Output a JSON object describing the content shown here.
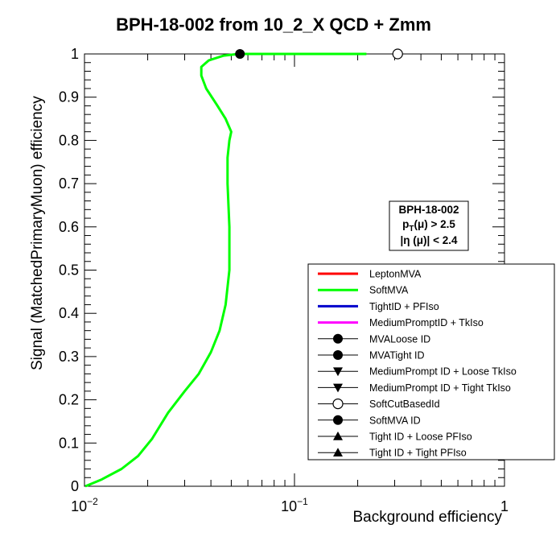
{
  "chart_data": {
    "type": "line",
    "title": "BPH-18-002 from 10_2_X QCD + Zmm",
    "xlabel": "Background efficiency",
    "ylabel": "Signal (MatchedPrimaryMuon) efficiency",
    "x_scale": "log",
    "xlim": [
      0.01,
      1
    ],
    "ylim": [
      0,
      1
    ],
    "x_ticks": [
      {
        "value": 0.01,
        "base": "10",
        "exp": "−2"
      },
      {
        "value": 0.1,
        "base": "10",
        "exp": "−1"
      },
      {
        "value": 1,
        "base": "1",
        "exp": ""
      }
    ],
    "y_ticks": [
      "0",
      "0.1",
      "0.2",
      "0.3",
      "0.4",
      "0.5",
      "0.6",
      "0.7",
      "0.8",
      "0.9",
      "1"
    ],
    "series": [
      {
        "name": "LeptonMVA",
        "color": "#ff0000",
        "points": []
      },
      {
        "name": "SoftMVA",
        "color": "#00ff00",
        "points": [
          {
            "x": 0.0101,
            "y": 0.0
          },
          {
            "x": 0.012,
            "y": 0.015
          },
          {
            "x": 0.015,
            "y": 0.04
          },
          {
            "x": 0.018,
            "y": 0.07
          },
          {
            "x": 0.021,
            "y": 0.11
          },
          {
            "x": 0.025,
            "y": 0.17
          },
          {
            "x": 0.03,
            "y": 0.22
          },
          {
            "x": 0.035,
            "y": 0.26
          },
          {
            "x": 0.04,
            "y": 0.31
          },
          {
            "x": 0.044,
            "y": 0.36
          },
          {
            "x": 0.047,
            "y": 0.42
          },
          {
            "x": 0.049,
            "y": 0.5
          },
          {
            "x": 0.049,
            "y": 0.6
          },
          {
            "x": 0.048,
            "y": 0.7
          },
          {
            "x": 0.048,
            "y": 0.76
          },
          {
            "x": 0.049,
            "y": 0.8
          },
          {
            "x": 0.05,
            "y": 0.82
          },
          {
            "x": 0.047,
            "y": 0.85
          },
          {
            "x": 0.043,
            "y": 0.88
          },
          {
            "x": 0.038,
            "y": 0.92
          },
          {
            "x": 0.036,
            "y": 0.95
          },
          {
            "x": 0.036,
            "y": 0.97
          },
          {
            "x": 0.039,
            "y": 0.985
          },
          {
            "x": 0.046,
            "y": 0.996
          },
          {
            "x": 0.054,
            "y": 1.0
          },
          {
            "x": 0.1,
            "y": 1.0
          },
          {
            "x": 0.22,
            "y": 1.0
          }
        ]
      },
      {
        "name": "TightID + PFIso",
        "color": "#0000cc",
        "points": []
      },
      {
        "name": "MediumPromptID + TkIso",
        "color": "#ff00ff",
        "points": []
      }
    ],
    "markers": [
      {
        "name": "MVALoose ID",
        "marker": "filled-circle",
        "points": []
      },
      {
        "name": "MVATight ID",
        "marker": "filled-circle",
        "points": []
      },
      {
        "name": "MediumPrompt ID + Loose TkIso",
        "marker": "filled-triangle-down",
        "points": []
      },
      {
        "name": "MediumPrompt ID + Tight TkIso",
        "marker": "filled-triangle-down",
        "points": []
      },
      {
        "name": "SoftCutBasedId",
        "marker": "open-circle",
        "points": [
          {
            "x": 0.31,
            "y": 1.0
          }
        ]
      },
      {
        "name": "SoftMVA ID",
        "marker": "filled-circle",
        "points": [
          {
            "x": 0.055,
            "y": 1.0
          }
        ]
      },
      {
        "name": "Tight ID + Loose PFIso",
        "marker": "filled-triangle-up",
        "points": []
      },
      {
        "name": "Tight ID + Tight PFIso",
        "marker": "filled-triangle-up",
        "points": []
      }
    ],
    "legend": {
      "placement": "bottom-right",
      "entries": [
        {
          "label": "LeptonMVA",
          "kind": "line",
          "color": "#ff0000"
        },
        {
          "label": "SoftMVA",
          "kind": "line",
          "color": "#00ff00"
        },
        {
          "label": "TightID + PFIso",
          "kind": "line",
          "color": "#0000cc"
        },
        {
          "label": "MediumPromptID + TkIso",
          "kind": "line",
          "color": "#ff00ff"
        },
        {
          "label": "MVALoose ID",
          "kind": "marker",
          "marker": "filled-circle"
        },
        {
          "label": "MVATight ID",
          "kind": "marker",
          "marker": "filled-circle"
        },
        {
          "label": "MediumPrompt ID + Loose TkIso",
          "kind": "marker",
          "marker": "filled-triangle-down"
        },
        {
          "label": "MediumPrompt ID + Tight TkIso",
          "kind": "marker",
          "marker": "filled-triangle-down"
        },
        {
          "label": "SoftCutBasedId",
          "kind": "marker",
          "marker": "open-circle"
        },
        {
          "label": "SoftMVA ID",
          "kind": "marker",
          "marker": "filled-circle"
        },
        {
          "label": "Tight ID + Loose PFIso",
          "kind": "marker",
          "marker": "filled-triangle-up"
        },
        {
          "label": "Tight ID + Tight PFIso",
          "kind": "marker",
          "marker": "filled-triangle-up"
        }
      ]
    },
    "info_box": {
      "line1": "BPH-18-002",
      "line2_main": "p",
      "line2_sub": "T",
      "line2_rest": "(μ) > 2.5",
      "line3": "|η (μ)| < 2.4"
    },
    "grid": false
  }
}
